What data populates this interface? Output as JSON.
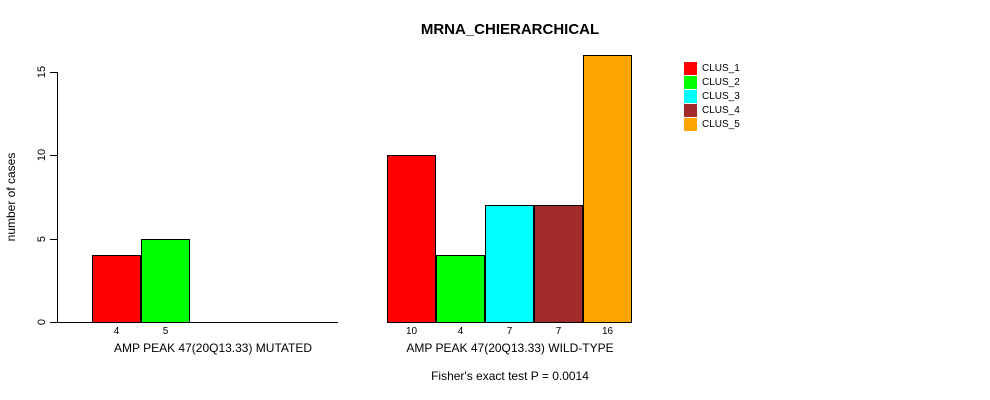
{
  "title": "MRNA_CHIERARCHICAL",
  "ylabel": "number of cases",
  "caption": "Fisher's exact test P = 0.0014",
  "colors": {
    "bar_border": "#000000",
    "axis": "#000000",
    "background": "#FFFFFF"
  },
  "legend": {
    "position": "right",
    "items": [
      {
        "label": "CLUS_1",
        "color": "#FF0000"
      },
      {
        "label": "CLUS_2",
        "color": "#00FF00"
      },
      {
        "label": "CLUS_3",
        "color": "#00FFFF"
      },
      {
        "label": "CLUS_4",
        "color": "#A52A2A"
      },
      {
        "label": "CLUS_5",
        "color": "#FFA500"
      }
    ]
  },
  "chart_data": {
    "type": "bar",
    "title": "MRNA_CHIERARCHICAL",
    "xlabel": "",
    "ylabel": "number of cases",
    "ylim": [
      0,
      16
    ],
    "yticks": [
      0,
      5,
      10,
      15
    ],
    "grid": false,
    "legend_position": "right",
    "categories": [
      "AMP PEAK 47(20Q13.33) MUTATED",
      "AMP PEAK 47(20Q13.33) WILD-TYPE"
    ],
    "series": [
      {
        "name": "CLUS_1",
        "color": "#FF0000",
        "values": [
          4,
          10
        ]
      },
      {
        "name": "CLUS_2",
        "color": "#00FF00",
        "values": [
          5,
          4
        ]
      },
      {
        "name": "CLUS_3",
        "color": "#00FFFF",
        "values": [
          0,
          7
        ]
      },
      {
        "name": "CLUS_4",
        "color": "#A52A2A",
        "values": [
          0,
          7
        ]
      },
      {
        "name": "CLUS_5",
        "color": "#FFA500",
        "values": [
          0,
          16
        ]
      }
    ],
    "bar_value_labels_shown_for_nonzero_only": true,
    "annotation": "Fisher's exact test P = 0.0014"
  }
}
